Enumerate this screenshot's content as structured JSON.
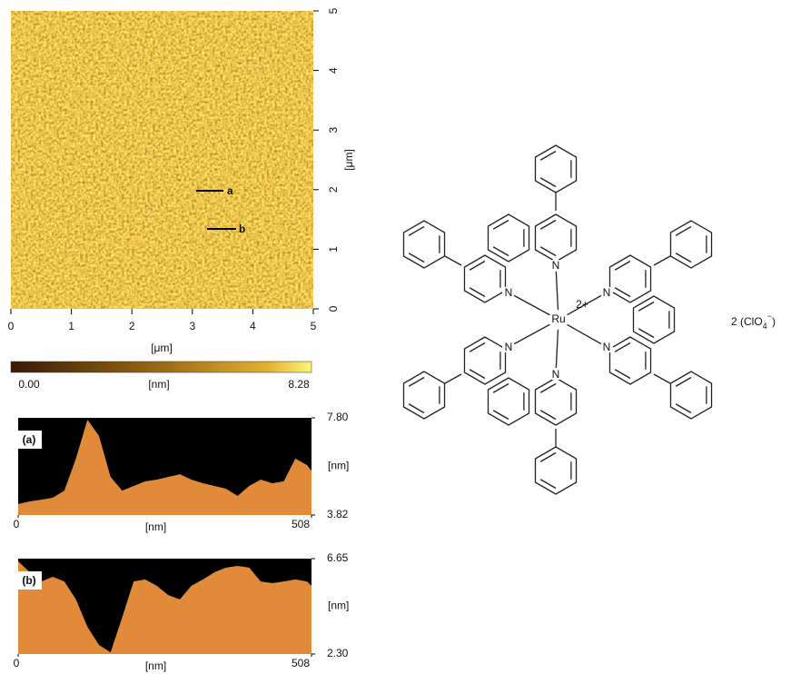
{
  "afm_image": {
    "xlim": [
      0,
      5
    ],
    "ylim": [
      0,
      5
    ],
    "xticks": [
      0,
      1,
      2,
      3,
      4,
      5
    ],
    "yticks": [
      0,
      1,
      2,
      3,
      4,
      5
    ],
    "x_label": "[μm]",
    "y_label": "[μm]",
    "markers": [
      "a",
      "b"
    ]
  },
  "colorbar": {
    "lim": [
      0,
      8.28
    ],
    "ticks": [
      {
        "value": 0,
        "label": "0.00"
      },
      8.28
    ],
    "unit": "[nm]"
  },
  "chart_data": [
    {
      "type": "area",
      "label": "(a)",
      "color": "#e08a3a",
      "x": [
        0,
        20,
        40,
        60,
        80,
        100,
        120,
        140,
        160,
        180,
        200,
        220,
        240,
        260,
        280,
        300,
        320,
        340,
        360,
        380,
        400,
        420,
        440,
        460,
        480,
        500,
        508
      ],
      "values": [
        4.27,
        4.38,
        4.45,
        4.53,
        4.82,
        6.13,
        7.72,
        7.06,
        5.38,
        4.82,
        5.01,
        5.2,
        5.27,
        5.38,
        5.49,
        5.27,
        5.12,
        5.01,
        4.9,
        4.6,
        5.01,
        5.27,
        5.12,
        5.2,
        6.13,
        5.87,
        5.64
      ],
      "xlim": [
        0,
        508
      ],
      "ylim": [
        3.82,
        7.8
      ],
      "xticks": [
        0,
        508
      ],
      "yticks": [
        3.82,
        {
          "value": 7.8,
          "label": "7.80"
        }
      ],
      "x_label": "[nm]",
      "y_label": "[nm]"
    },
    {
      "type": "area",
      "label": "(b)",
      "color": "#e08a3a",
      "x": [
        0,
        20,
        40,
        60,
        80,
        100,
        120,
        140,
        160,
        180,
        200,
        220,
        240,
        260,
        280,
        300,
        320,
        340,
        360,
        380,
        400,
        420,
        440,
        460,
        480,
        500,
        508
      ],
      "values": [
        6.53,
        6.03,
        5.61,
        5.82,
        5.61,
        4.79,
        3.54,
        2.71,
        2.38,
        3.96,
        5.61,
        5.7,
        5.41,
        4.99,
        4.79,
        5.41,
        5.7,
        6.03,
        6.24,
        6.32,
        6.24,
        5.61,
        5.53,
        5.61,
        5.7,
        5.61,
        5.41
      ],
      "xlim": [
        0,
        508
      ],
      "ylim": [
        2.3,
        6.65
      ],
      "xticks": [
        0,
        508
      ],
      "yticks": [
        {
          "value": 2.3,
          "label": "2.30"
        },
        6.65
      ],
      "x_label": "[nm]",
      "y_label": "[nm]"
    }
  ],
  "structure": {
    "atoms": [
      "N",
      "N",
      "N",
      "N",
      "N",
      "N"
    ],
    "metal": "Ru",
    "charge": "2+",
    "counter_ion": {
      "text": "2 (ClO",
      "subscript": "4",
      "superscript": "−",
      "close": ")"
    }
  }
}
